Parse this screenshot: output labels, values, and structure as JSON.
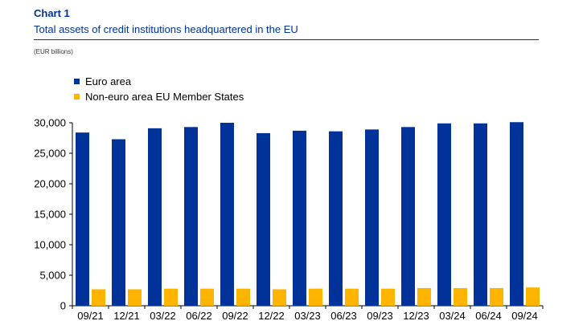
{
  "header": {
    "chart_label": "Chart 1",
    "title": "Total assets of credit institutions headquartered in the EU",
    "unit": "(EUR billions)"
  },
  "colors": {
    "euro_area": "#003299",
    "non_euro": "#FFB400",
    "title": "#003299",
    "axis": "#000000"
  },
  "chart_data": {
    "type": "bar",
    "title": "Total assets of credit institutions headquartered in the EU",
    "ylabel": "(EUR billions)",
    "xlabel": "",
    "categories": [
      "09/21",
      "12/21",
      "03/22",
      "06/22",
      "09/22",
      "12/22",
      "03/23",
      "06/23",
      "09/23",
      "12/23",
      "03/24",
      "06/24",
      "09/24"
    ],
    "series": [
      {
        "name": "Euro area",
        "values": [
          28400,
          27300,
          29100,
          29300,
          30000,
          28300,
          28700,
          28600,
          28900,
          29300,
          29900,
          29900,
          30100
        ]
      },
      {
        "name": "Non-euro area EU Member States",
        "values": [
          2700,
          2700,
          2800,
          2800,
          2800,
          2700,
          2800,
          2800,
          2800,
          2900,
          2900,
          2900,
          3000
        ]
      }
    ],
    "ylim": [
      0,
      30000
    ],
    "yticks": [
      0,
      5000,
      10000,
      15000,
      20000,
      25000,
      30000
    ],
    "ytick_labels": [
      "0",
      "5,000",
      "10,000",
      "15,000",
      "20,000",
      "25,000",
      "30,000"
    ],
    "legend_position": "top-left",
    "grid": false
  }
}
